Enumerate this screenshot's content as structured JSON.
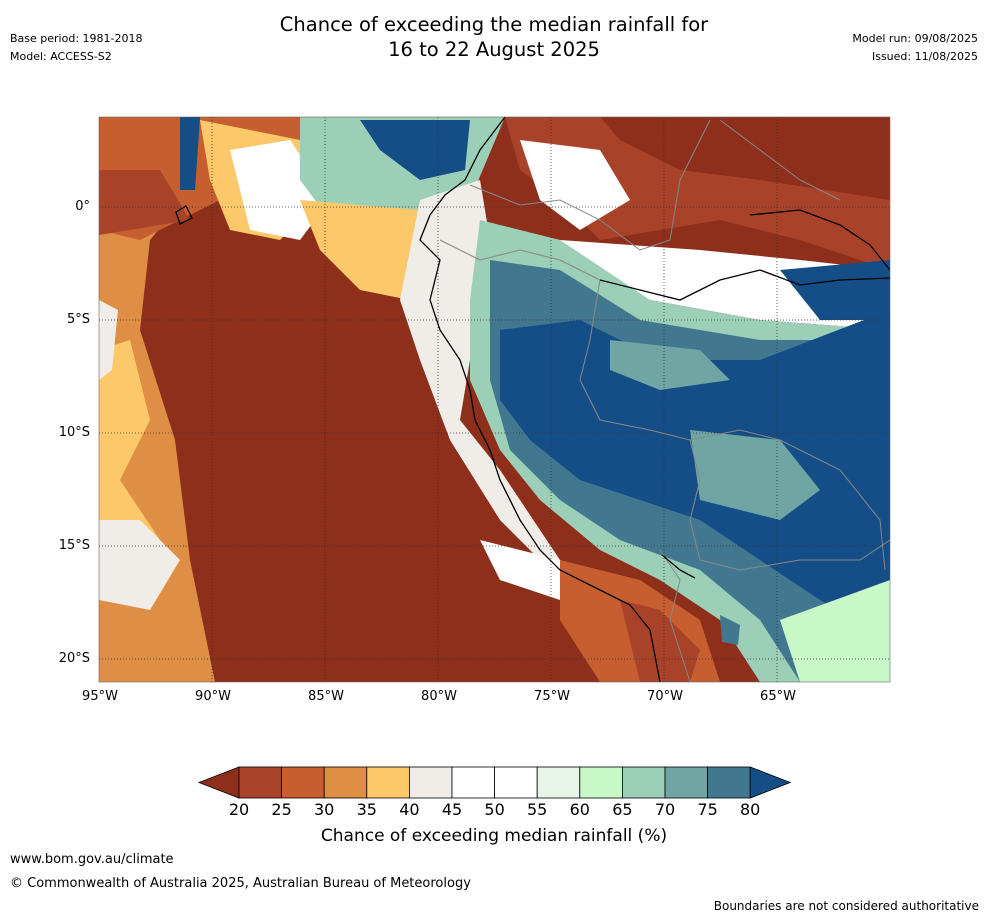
{
  "header": {
    "title_line1": "Chance of exceeding the median rainfall for",
    "title_line2": "16 to 22 August 2025",
    "base_period": "Base period: 1981-2018",
    "model": "Model: ACCESS-S2",
    "model_run": "Model run: 09/08/2025",
    "issued": "Issued: 11/08/2025"
  },
  "map": {
    "region": "Western South America",
    "lon_range": [
      -95,
      -60
    ],
    "lat_range": [
      -21,
      4
    ],
    "y_ticks": [
      "0°",
      "5°S",
      "10°S",
      "15°S",
      "20°S"
    ],
    "x_ticks": [
      "95°W",
      "90°W",
      "85°W",
      "80°W",
      "75°W",
      "70°W",
      "65°W"
    ],
    "grid": "dotted"
  },
  "colorbar": {
    "labels": [
      "20",
      "25",
      "30",
      "35",
      "40",
      "45",
      "50",
      "55",
      "60",
      "65",
      "70",
      "75",
      "80"
    ],
    "colors": [
      "#8e2f1c",
      "#a8432a",
      "#c65e30",
      "#df8e45",
      "#fdc86a",
      "#f0ece8",
      "#ffffff",
      "#ffffff",
      "#e8f4e8",
      "#c8f7c8",
      "#9ccfb8",
      "#6fa6a4",
      "#41788f",
      "#154d86"
    ],
    "title": "Chance of exceeding median rainfall (%)"
  },
  "footer": {
    "website": "www.bom.gov.au/climate",
    "copyright": "© Commonwealth of Australia 2025, Australian Bureau of Meteorology",
    "disclaimer": "Boundaries are not considered authoritative"
  }
}
